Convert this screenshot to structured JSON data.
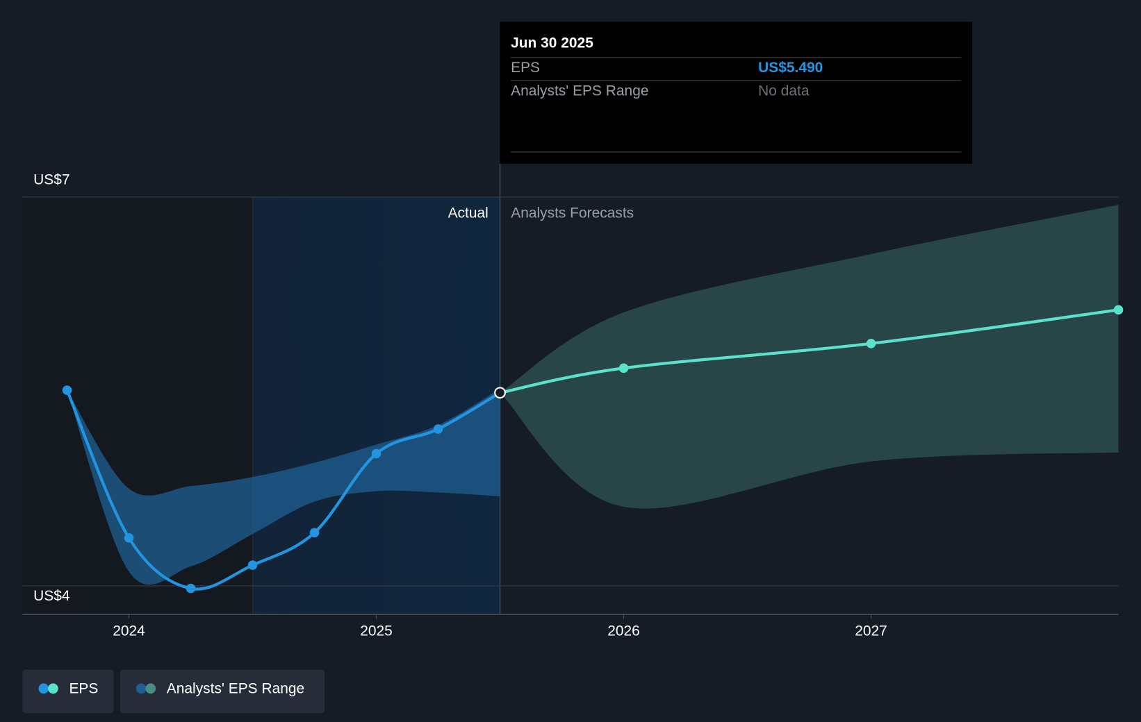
{
  "chart_data": {
    "type": "line",
    "x": [
      2023.75,
      2024.0,
      2024.25,
      2024.5,
      2024.75,
      2025.0,
      2025.25,
      2025.5,
      2026.0,
      2027.0,
      2028.0
    ],
    "series": [
      {
        "name": "EPS",
        "color": "#2394df",
        "forecast_color": "#5ce1cb",
        "values": [
          5.51,
          4.37,
          3.98,
          4.16,
          4.41,
          5.02,
          5.21,
          5.49,
          5.68,
          5.87,
          6.13
        ]
      }
    ],
    "range": {
      "name": "Analysts' EPS Range",
      "color": "#1f5f93",
      "forecast_color": "#2c4e4f",
      "x": [
        2023.75,
        2024.0,
        2024.25,
        2024.5,
        2024.75,
        2025.0,
        2025.25,
        2025.5
      ],
      "low": [
        5.51,
        4.11,
        4.15,
        4.4,
        4.65,
        4.73,
        4.72,
        4.69
      ],
      "high": [
        5.51,
        4.75,
        4.77,
        4.84,
        4.95,
        5.09,
        5.24,
        5.52
      ]
    },
    "forecast_range": {
      "x": [
        2025.5,
        2026.0,
        2027.0,
        2028.0
      ],
      "low": [
        5.49,
        4.61,
        4.96,
        5.03
      ],
      "high": [
        5.49,
        6.11,
        6.56,
        6.94
      ]
    },
    "divider_x": 2025.5,
    "highlight_xlim": [
      2024.5,
      2025.5
    ],
    "actual_label": "Actual",
    "forecast_label": "Analysts Forecasts",
    "xlim": [
      2023.57,
      2028.0
    ],
    "xticks": [
      2024,
      2025,
      2026,
      2027
    ],
    "ylim": [
      3.78,
      7
    ],
    "yticks": [
      {
        "value": 7,
        "label": "US$7"
      },
      {
        "value": 4,
        "label": "US$4"
      }
    ],
    "tooltip": {
      "date": "Jun 30 2025",
      "rows": [
        {
          "label": "EPS",
          "value": "US$5.490"
        },
        {
          "label": "Analysts' EPS Range",
          "value": "No data"
        }
      ]
    }
  }
}
